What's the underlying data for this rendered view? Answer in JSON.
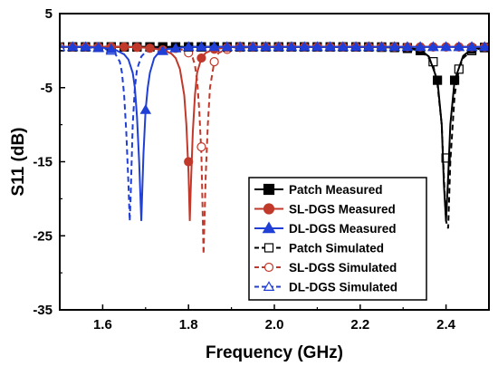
{
  "chart_data": {
    "type": "line",
    "xlabel": "Frequency  (GHz)",
    "ylabel": "S11  (dB)",
    "xlim": [
      1.5,
      2.5
    ],
    "ylim": [
      -35,
      5
    ],
    "xticks": [
      1.6,
      1.8,
      2.0,
      2.2,
      2.4
    ],
    "xtick_labels": [
      "1.6",
      "1.8",
      "2.0",
      "2.2",
      "2.4"
    ],
    "yticks": [
      -35,
      -25,
      -15,
      -5,
      5
    ],
    "ytick_labels": [
      "-35",
      "-25",
      "-15",
      "-5",
      "5"
    ],
    "grid": false,
    "legend_position": "bottom-right",
    "series": [
      {
        "name": "Patch Measured",
        "color": "#000000",
        "line": "solid",
        "marker": "square-filled",
        "x": [
          1.5,
          1.53,
          1.56,
          1.59,
          1.62,
          1.65,
          1.68,
          1.71,
          1.74,
          1.77,
          1.8,
          1.83,
          1.86,
          1.89,
          1.92,
          1.95,
          1.98,
          2.01,
          2.04,
          2.07,
          2.1,
          2.13,
          2.16,
          2.19,
          2.22,
          2.25,
          2.28,
          2.31,
          2.34,
          2.36,
          2.38,
          2.39,
          2.395,
          2.4,
          2.405,
          2.41,
          2.42,
          2.44,
          2.46,
          2.48,
          2.5
        ],
        "y": [
          0.5,
          0.5,
          0.5,
          0.5,
          0.5,
          0.5,
          0.5,
          0.5,
          0.5,
          0.5,
          0.5,
          0.5,
          0.5,
          0.5,
          0.5,
          0.5,
          0.5,
          0.5,
          0.5,
          0.5,
          0.5,
          0.5,
          0.5,
          0.5,
          0.5,
          0.5,
          0.5,
          0.4,
          0.1,
          -0.8,
          -4.0,
          -10.0,
          -18.0,
          -23.0,
          -17.0,
          -10.0,
          -4.0,
          -0.7,
          0.2,
          0.4,
          0.5
        ],
        "marker_x": [
          1.53,
          1.56,
          1.59,
          1.62,
          1.65,
          1.68,
          1.71,
          1.74,
          1.77,
          1.8,
          1.83,
          1.86,
          1.89,
          1.92,
          1.95,
          1.98,
          2.01,
          2.04,
          2.07,
          2.1,
          2.13,
          2.16,
          2.19,
          2.22,
          2.25,
          2.28,
          2.31,
          2.34,
          2.38,
          2.42,
          2.46,
          2.49
        ]
      },
      {
        "name": "SL-DGS Measured",
        "color": "#c0392b",
        "line": "solid",
        "marker": "circle-filled",
        "x": [
          1.5,
          1.55,
          1.6,
          1.65,
          1.7,
          1.74,
          1.76,
          1.77,
          1.78,
          1.79,
          1.795,
          1.8,
          1.803,
          1.805,
          1.81,
          1.815,
          1.82,
          1.83,
          1.84,
          1.86,
          1.9,
          1.95,
          2.0,
          2.1,
          2.2,
          2.3,
          2.4,
          2.5
        ],
        "y": [
          0.5,
          0.5,
          0.5,
          0.5,
          0.4,
          0.1,
          -0.4,
          -1.0,
          -2.5,
          -6.0,
          -10.0,
          -16.5,
          -23.0,
          -19.0,
          -11.0,
          -6.0,
          -3.0,
          -1.0,
          -0.3,
          0.2,
          0.5,
          0.5,
          0.5,
          0.5,
          0.5,
          0.5,
          0.5,
          0.5
        ],
        "marker_x": [
          1.53,
          1.56,
          1.59,
          1.62,
          1.65,
          1.68,
          1.71,
          1.74,
          1.8,
          1.83,
          1.86,
          1.89,
          1.92,
          1.95,
          1.98,
          2.01,
          2.04,
          2.07,
          2.1,
          2.13,
          2.16,
          2.19,
          2.22,
          2.25,
          2.28,
          2.31,
          2.34,
          2.37,
          2.4,
          2.43,
          2.46,
          2.49
        ],
        "marker_y_override": {
          "1.80": -15.0
        }
      },
      {
        "name": "DL-DGS Measured",
        "color": "#1f3fd6",
        "line": "solid",
        "marker": "triangle-filled",
        "x": [
          1.5,
          1.55,
          1.6,
          1.63,
          1.65,
          1.66,
          1.67,
          1.675,
          1.68,
          1.685,
          1.69,
          1.695,
          1.7,
          1.705,
          1.71,
          1.72,
          1.73,
          1.75,
          1.8,
          1.9,
          2.0,
          2.1,
          2.2,
          2.3,
          2.4,
          2.5
        ],
        "y": [
          0.5,
          0.5,
          0.4,
          0.1,
          -0.5,
          -1.2,
          -3.0,
          -5.0,
          -9.0,
          -15.0,
          -23.0,
          -14.0,
          -8.0,
          -5.0,
          -3.0,
          -1.0,
          -0.3,
          0.2,
          0.5,
          0.5,
          0.5,
          0.5,
          0.5,
          0.5,
          0.5,
          0.5
        ],
        "marker_x": [
          1.53,
          1.56,
          1.59,
          1.62,
          1.7,
          1.74,
          1.77,
          1.8,
          1.83,
          1.86,
          1.89,
          1.92,
          1.95,
          1.98,
          2.01,
          2.04,
          2.07,
          2.1,
          2.13,
          2.16,
          2.19,
          2.22,
          2.25,
          2.28,
          2.31,
          2.34,
          2.37,
          2.4,
          2.43,
          2.46,
          2.49
        ],
        "marker_y_override": {
          "1.70": -8.0
        }
      },
      {
        "name": "Patch Simulated",
        "color": "#000000",
        "line": "dashed",
        "marker": "square-open",
        "x": [
          1.5,
          1.6,
          1.7,
          1.8,
          1.9,
          2.0,
          2.1,
          2.2,
          2.3,
          2.34,
          2.36,
          2.37,
          2.38,
          2.39,
          2.395,
          2.4,
          2.405,
          2.41,
          2.42,
          2.43,
          2.44,
          2.46,
          2.48,
          2.5
        ],
        "y": [
          0.5,
          0.5,
          0.5,
          0.5,
          0.5,
          0.5,
          0.5,
          0.5,
          0.4,
          0.0,
          -1.0,
          -2.0,
          -4.5,
          -10.0,
          -17.0,
          -23.0,
          -24.0,
          -15.0,
          -6.0,
          -2.5,
          -1.0,
          0.0,
          0.3,
          0.5
        ],
        "marker_x": [
          1.5,
          1.53,
          1.56,
          1.59,
          1.62,
          1.65,
          1.68,
          1.71,
          1.74,
          1.77,
          1.8,
          1.83,
          1.86,
          1.89,
          1.92,
          1.95,
          1.98,
          2.01,
          2.04,
          2.07,
          2.1,
          2.13,
          2.16,
          2.19,
          2.22,
          2.25,
          2.28,
          2.31,
          2.34,
          2.37,
          2.4,
          2.43,
          2.46,
          2.49
        ],
        "marker_y_override": {
          "2.40": -14.5,
          "2.37": -1.5
        }
      },
      {
        "name": "SL-DGS Simulated",
        "color": "#c0392b",
        "line": "dashed",
        "marker": "circle-open",
        "x": [
          1.5,
          1.6,
          1.7,
          1.76,
          1.78,
          1.79,
          1.8,
          1.81,
          1.815,
          1.82,
          1.825,
          1.83,
          1.833,
          1.835,
          1.84,
          1.845,
          1.85,
          1.86,
          1.87,
          1.9,
          2.0,
          2.1,
          2.2,
          2.3,
          2.4,
          2.5
        ],
        "y": [
          0.5,
          0.5,
          0.5,
          0.4,
          0.2,
          0.0,
          -0.3,
          -1.0,
          -2.0,
          -4.0,
          -8.0,
          -14.0,
          -22.0,
          -27.5,
          -17.0,
          -10.0,
          -5.0,
          -1.5,
          -0.3,
          0.4,
          0.5,
          0.5,
          0.5,
          0.5,
          0.5,
          0.5
        ],
        "marker_x": [
          1.5,
          1.53,
          1.56,
          1.59,
          1.62,
          1.65,
          1.68,
          1.71,
          1.74,
          1.77,
          1.8,
          1.83,
          1.86,
          1.89,
          1.92,
          1.95,
          1.98,
          2.01,
          2.04,
          2.07,
          2.1,
          2.13,
          2.16,
          2.19,
          2.22,
          2.25,
          2.28,
          2.31,
          2.34,
          2.37,
          2.4,
          2.43,
          2.46,
          2.49
        ],
        "marker_y_override": {
          "1.83": -13.0
        }
      },
      {
        "name": "DL-DGS Simulated",
        "color": "#1f3fd6",
        "line": "dashed",
        "marker": "triangle-open",
        "x": [
          1.5,
          1.55,
          1.6,
          1.62,
          1.63,
          1.64,
          1.645,
          1.65,
          1.655,
          1.66,
          1.663,
          1.665,
          1.67,
          1.675,
          1.68,
          1.69,
          1.7,
          1.72,
          1.8,
          1.9,
          2.0,
          2.1,
          2.2,
          2.3,
          2.4,
          2.5
        ],
        "y": [
          0.5,
          0.5,
          0.3,
          0.0,
          -0.5,
          -1.5,
          -3.0,
          -6.0,
          -11.0,
          -18.0,
          -23.0,
          -20.0,
          -10.0,
          -5.0,
          -2.5,
          -0.8,
          -0.2,
          0.3,
          0.5,
          0.5,
          0.5,
          0.5,
          0.5,
          0.5,
          0.5,
          0.5
        ],
        "marker_x": [
          1.5,
          1.53,
          1.56,
          1.59,
          1.62,
          1.74,
          1.77,
          1.8,
          1.83,
          1.86,
          1.89,
          1.92,
          1.95,
          1.98,
          2.01,
          2.04,
          2.07,
          2.1,
          2.13,
          2.16,
          2.19,
          2.22,
          2.25,
          2.28,
          2.31,
          2.34,
          2.37,
          2.4,
          2.43,
          2.46,
          2.49
        ]
      }
    ]
  }
}
